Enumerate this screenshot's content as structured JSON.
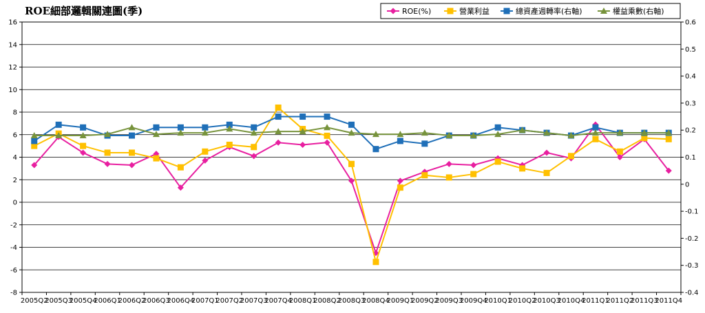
{
  "chart_data": {
    "type": "line",
    "title": "ROE細部邏輯關連圖(季)",
    "categories": [
      "2005Q2",
      "2005Q3",
      "2005Q4",
      "2006Q1",
      "2006Q2",
      "2006Q3",
      "2006Q4",
      "2007Q1",
      "2007Q2",
      "2007Q3",
      "2007Q4",
      "2008Q1",
      "2008Q2",
      "2008Q3",
      "2008Q4",
      "2009Q1",
      "2009Q2",
      "2009Q3",
      "2009Q4",
      "2010Q1",
      "2010Q2",
      "2010Q3",
      "2010Q4",
      "2011Q1",
      "2011Q2",
      "2011Q3",
      "2011Q4"
    ],
    "left_axis": {
      "min": -8,
      "max": 16,
      "step": 2,
      "tick_labels": [
        "-8",
        "-6",
        "-4",
        "-2",
        "0",
        "2",
        "4",
        "6",
        "8",
        "10",
        "12",
        "14",
        "16"
      ]
    },
    "right_axis": {
      "min": -0.4,
      "max": 0.6,
      "step": 0.1,
      "tick_labels": [
        "-0.4",
        "-0.3",
        "-0.2",
        "-0.1",
        "0",
        "0.1",
        "0.2",
        "0.3",
        "0.4",
        "0.5",
        "0.6"
      ]
    },
    "grid": true,
    "legend_position": "top-right",
    "series": [
      {
        "name": "ROE(%)",
        "axis": "left",
        "color": "#e81fa0",
        "marker": "diamond",
        "values": [
          3.3,
          5.8,
          4.4,
          3.4,
          3.3,
          4.3,
          1.3,
          3.7,
          4.9,
          4.1,
          5.3,
          5.1,
          5.3,
          1.9,
          -4.5,
          1.9,
          2.7,
          3.4,
          3.3,
          3.9,
          3.3,
          4.4,
          3.9,
          6.9,
          4.0,
          5.6,
          2.8
        ]
      },
      {
        "name": "營業利益",
        "axis": "left",
        "color": "#ffc000",
        "marker": "square",
        "values": [
          5.0,
          6.1,
          5.0,
          4.4,
          4.4,
          3.9,
          3.1,
          4.5,
          5.1,
          4.9,
          8.4,
          6.5,
          5.9,
          3.4,
          -5.3,
          1.3,
          2.4,
          2.2,
          2.5,
          3.6,
          3.0,
          2.6,
          4.1,
          5.6,
          4.5,
          5.7,
          5.6
        ]
      },
      {
        "name": "總資產週轉率(右軸)",
        "axis": "right",
        "color": "#1f6fb8",
        "marker": "square",
        "values": [
          0.16,
          0.22,
          0.21,
          0.18,
          0.18,
          0.21,
          0.21,
          0.21,
          0.22,
          0.21,
          0.25,
          0.25,
          0.25,
          0.22,
          0.13,
          0.16,
          0.15,
          0.18,
          0.18,
          0.21,
          0.2,
          0.19,
          0.18,
          0.21,
          0.19,
          0.19,
          0.19
        ]
      },
      {
        "name": "權益乘數(右軸)",
        "axis": "right",
        "color": "#77933c",
        "marker": "triangle",
        "values": [
          0.18,
          0.18,
          0.18,
          0.185,
          0.21,
          0.185,
          0.19,
          0.19,
          0.205,
          0.19,
          0.195,
          0.195,
          0.21,
          0.19,
          0.185,
          0.185,
          0.19,
          0.18,
          0.18,
          0.185,
          0.2,
          0.19,
          0.18,
          0.19,
          0.19,
          0.19,
          0.19
        ]
      }
    ]
  }
}
